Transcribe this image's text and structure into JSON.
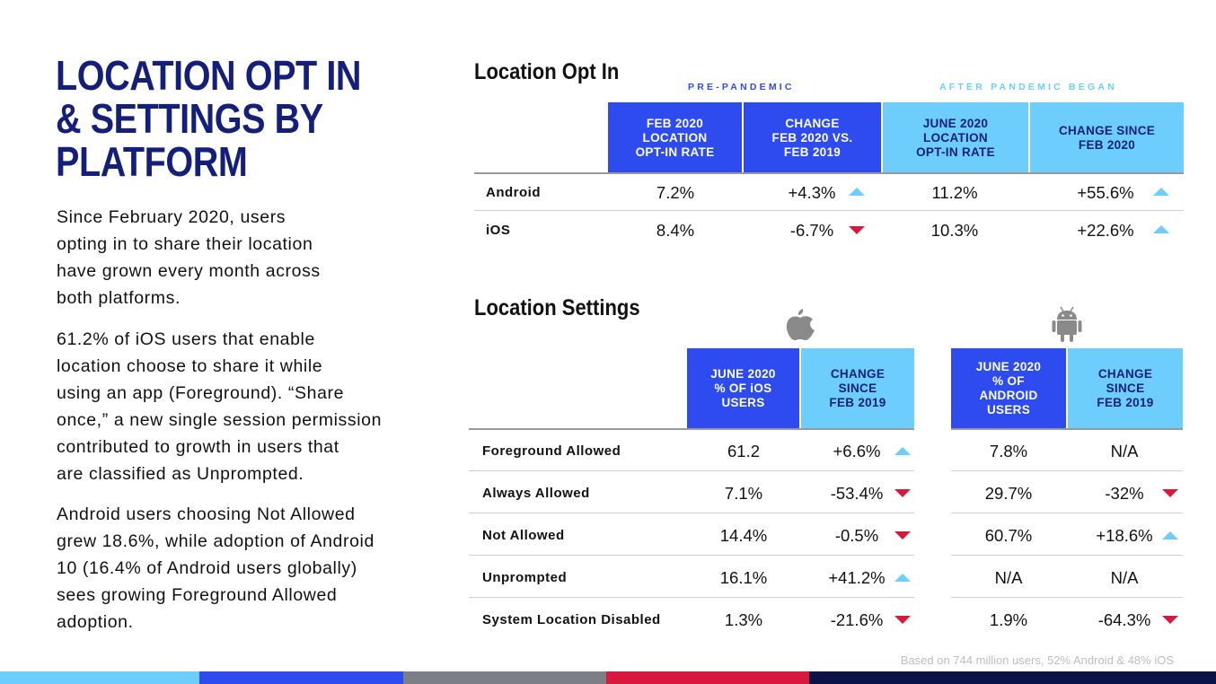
{
  "title_lines": [
    "LOCATION OPT IN",
    "& SETTINGS BY",
    "PLATFORM"
  ],
  "paragraphs": [
    [
      "Since February 2020, users",
      "opting in to share their location",
      "have grown every month across",
      "both platforms."
    ],
    [
      "61.2% of iOS users that enable",
      "location choose to share it while",
      "using an app (Foreground). “Share",
      "once,” a new single session permission",
      "contributed to growth in users that",
      " are classified as Unprompted."
    ],
    [
      "Android users choosing Not Allowed",
      "grew 18.6%, while adoption of Android",
      "10 (16.4% of Android users globally)",
      "sees growing Foreground Allowed",
      "adoption."
    ]
  ],
  "optin": {
    "title": "Location Opt In",
    "group_pre": "PRE-PANDEMIC",
    "group_after": "AFTER PANDEMIC BEGAN",
    "headers": [
      "FEB 2020\nLOCATION\nOPT-IN RATE",
      "CHANGE\nFEB 2020 VS.\nFEB 2019",
      "JUNE 2020\nLOCATION\nOPT-IN RATE",
      "CHANGE SINCE\nFEB 2020"
    ],
    "rows": [
      {
        "label": "Android",
        "rate_feb": "7.2%",
        "change_feb": "+4.3%",
        "change_feb_dir": "up",
        "rate_june": "11.2%",
        "change_since": "+55.6%",
        "change_since_dir": "up"
      },
      {
        "label": "iOS",
        "rate_feb": "8.4%",
        "change_feb": "-6.7%",
        "change_feb_dir": "down",
        "rate_june": "10.3%",
        "change_since": "+22.6%",
        "change_since_dir": "up"
      }
    ]
  },
  "settings": {
    "title": "Location Settings",
    "ios_icon": "apple-logo-icon",
    "android_icon": "android-robot-icon",
    "ios_headers": [
      "JUNE 2020\n% OF iOS\nUSERS",
      "CHANGE\nSINCE\nFEB 2019"
    ],
    "android_headers": [
      "JUNE 2020\n% OF\nANDROID\nUSERS",
      "CHANGE\nSINCE\nFEB 2019"
    ],
    "rows": [
      {
        "label": "Foreground Allowed",
        "ios_pct": "61.2",
        "ios_change": "+6.6%",
        "ios_dir": "up",
        "android_pct": "7.8%",
        "android_change": "N/A",
        "android_dir": ""
      },
      {
        "label": "Always Allowed",
        "ios_pct": "7.1%",
        "ios_change": "-53.4%",
        "ios_dir": "down",
        "android_pct": "29.7%",
        "android_change": "-32%",
        "android_dir": "down"
      },
      {
        "label": "Not Allowed",
        "ios_pct": "14.4%",
        "ios_change": "-0.5%",
        "ios_dir": "down",
        "android_pct": "60.7%",
        "android_change": "+18.6%",
        "android_dir": "up"
      },
      {
        "label": "Unprompted",
        "ios_pct": "16.1%",
        "ios_change": "+41.2%",
        "ios_dir": "up",
        "android_pct": "N/A",
        "android_change": "N/A",
        "android_dir": ""
      },
      {
        "label": "System Location Disabled",
        "ios_pct": "1.3%",
        "ios_change": "-21.6%",
        "ios_dir": "down",
        "android_pct": "1.9%",
        "android_change": "-64.3%",
        "android_dir": "down"
      }
    ]
  },
  "footnote": "Based on 744 million users, 52% Android & 48% iOS",
  "colors": {
    "title": "#141f7a",
    "header_dark": "#2e4bf0",
    "header_light": "#6dcdfd",
    "arrow_up": "#6dcdfd",
    "arrow_down": "#d8183d",
    "footer_bar": [
      "#6dcdfd",
      "#2e4bf0",
      "#7d7f86",
      "#d8183d",
      "#0b1245",
      "#0b1245"
    ]
  }
}
